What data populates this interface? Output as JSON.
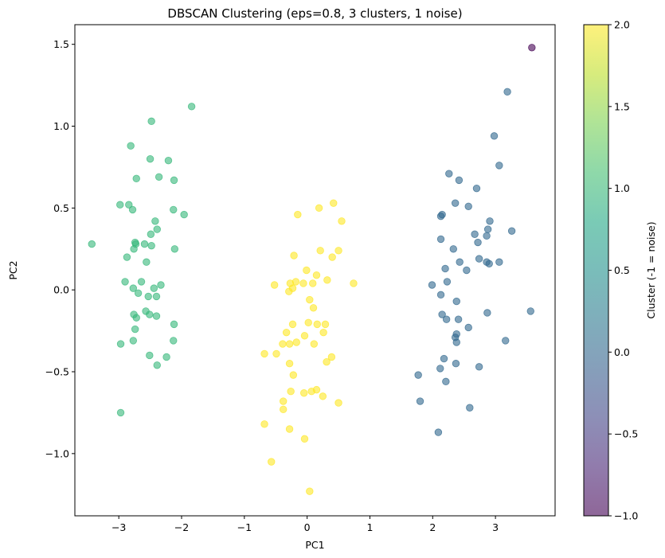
{
  "chart_data": {
    "type": "scatter",
    "title": "DBSCAN Clustering (eps=0.8, 3 clusters, 1 noise)",
    "xlabel": "PC1",
    "ylabel": "PC2",
    "xlim": [
      -3.7,
      3.95
    ],
    "ylim": [
      -1.38,
      1.62
    ],
    "x_ticks": [
      -3,
      -2,
      -1,
      0,
      1,
      2,
      3
    ],
    "x_tick_labels": [
      "−3",
      "−2",
      "−1",
      "0",
      "1",
      "2",
      "3"
    ],
    "y_ticks": [
      -1.0,
      -0.5,
      0.0,
      0.5,
      1.0,
      1.5
    ],
    "y_tick_labels": [
      "−1.0",
      "−0.5",
      "0.0",
      "0.5",
      "1.0",
      "1.5"
    ],
    "grid": false,
    "colorbar": {
      "label": "Cluster (-1 = noise)",
      "range": [
        -1.0,
        2.0
      ],
      "colormap": "viridis",
      "ticks": [
        -1.0,
        -0.5,
        0.0,
        0.5,
        1.0,
        1.5,
        2.0
      ],
      "tick_labels": [
        "−1.0",
        "−0.5",
        "0.0",
        "0.5",
        "1.0",
        "1.5",
        "2.0"
      ]
    },
    "cluster_colors": {
      "-1": "#440154",
      "0": "#31688e",
      "1": "#35b779",
      "2": "#fde725"
    },
    "point_alpha": 0.6,
    "series": [
      {
        "cluster": -1,
        "points": [
          [
            3.58,
            1.48
          ]
        ]
      },
      {
        "cluster": 0,
        "points": [
          [
            3.19,
            1.21
          ],
          [
            2.98,
            0.94
          ],
          [
            3.06,
            0.76
          ],
          [
            2.26,
            0.71
          ],
          [
            2.42,
            0.67
          ],
          [
            2.7,
            0.62
          ],
          [
            2.36,
            0.53
          ],
          [
            2.57,
            0.51
          ],
          [
            2.15,
            0.46
          ],
          [
            2.13,
            0.45
          ],
          [
            2.91,
            0.42
          ],
          [
            2.88,
            0.37
          ],
          [
            3.26,
            0.36
          ],
          [
            2.67,
            0.34
          ],
          [
            2.86,
            0.33
          ],
          [
            2.72,
            0.29
          ],
          [
            2.13,
            0.31
          ],
          [
            2.33,
            0.25
          ],
          [
            2.74,
            0.19
          ],
          [
            2.43,
            0.17
          ],
          [
            2.86,
            0.17
          ],
          [
            2.9,
            0.16
          ],
          [
            3.06,
            0.17
          ],
          [
            2.2,
            0.13
          ],
          [
            2.54,
            0.12
          ],
          [
            2.23,
            0.05
          ],
          [
            1.99,
            0.03
          ],
          [
            2.13,
            -0.03
          ],
          [
            3.56,
            -0.13
          ],
          [
            2.38,
            -0.07
          ],
          [
            2.15,
            -0.15
          ],
          [
            2.22,
            -0.18
          ],
          [
            2.41,
            -0.18
          ],
          [
            2.87,
            -0.14
          ],
          [
            2.57,
            -0.23
          ],
          [
            2.38,
            -0.27
          ],
          [
            2.36,
            -0.29
          ],
          [
            2.38,
            -0.32
          ],
          [
            3.16,
            -0.31
          ],
          [
            2.18,
            -0.42
          ],
          [
            2.37,
            -0.45
          ],
          [
            2.12,
            -0.48
          ],
          [
            2.74,
            -0.47
          ],
          [
            1.77,
            -0.52
          ],
          [
            2.21,
            -0.56
          ],
          [
            1.8,
            -0.68
          ],
          [
            2.59,
            -0.72
          ],
          [
            2.09,
            -0.87
          ]
        ]
      },
      {
        "cluster": 1,
        "points": [
          [
            -1.84,
            1.12
          ],
          [
            -2.48,
            1.03
          ],
          [
            -2.81,
            0.88
          ],
          [
            -2.5,
            0.8
          ],
          [
            -2.21,
            0.79
          ],
          [
            -2.72,
            0.68
          ],
          [
            -2.36,
            0.69
          ],
          [
            -2.12,
            0.67
          ],
          [
            -2.98,
            0.52
          ],
          [
            -2.84,
            0.52
          ],
          [
            -2.78,
            0.49
          ],
          [
            -2.13,
            0.49
          ],
          [
            -1.96,
            0.46
          ],
          [
            -2.42,
            0.42
          ],
          [
            -2.39,
            0.37
          ],
          [
            -2.49,
            0.34
          ],
          [
            -3.43,
            0.28
          ],
          [
            -2.74,
            0.29
          ],
          [
            -2.73,
            0.28
          ],
          [
            -2.59,
            0.28
          ],
          [
            -2.48,
            0.27
          ],
          [
            -2.76,
            0.25
          ],
          [
            -2.11,
            0.25
          ],
          [
            -2.87,
            0.2
          ],
          [
            -2.56,
            0.17
          ],
          [
            -2.9,
            0.05
          ],
          [
            -2.64,
            0.05
          ],
          [
            -2.33,
            0.03
          ],
          [
            -2.77,
            0.01
          ],
          [
            -2.44,
            0.01
          ],
          [
            -2.69,
            -0.02
          ],
          [
            -2.53,
            -0.04
          ],
          [
            -2.4,
            -0.04
          ],
          [
            -2.57,
            -0.13
          ],
          [
            -2.76,
            -0.15
          ],
          [
            -2.51,
            -0.15
          ],
          [
            -2.4,
            -0.16
          ],
          [
            -2.72,
            -0.17
          ],
          [
            -2.12,
            -0.21
          ],
          [
            -2.74,
            -0.24
          ],
          [
            -2.97,
            -0.33
          ],
          [
            -2.77,
            -0.31
          ],
          [
            -2.13,
            -0.31
          ],
          [
            -2.51,
            -0.4
          ],
          [
            -2.24,
            -0.41
          ],
          [
            -2.39,
            -0.46
          ],
          [
            -2.97,
            -0.75
          ]
        ]
      },
      {
        "cluster": 2,
        "points": [
          [
            0.42,
            0.53
          ],
          [
            0.19,
            0.5
          ],
          [
            -0.15,
            0.46
          ],
          [
            0.55,
            0.42
          ],
          [
            0.21,
            0.24
          ],
          [
            0.5,
            0.24
          ],
          [
            0.4,
            0.2
          ],
          [
            -0.21,
            0.21
          ],
          [
            -0.01,
            0.12
          ],
          [
            0.15,
            0.09
          ],
          [
            -0.18,
            0.05
          ],
          [
            0.32,
            0.06
          ],
          [
            -0.27,
            0.04
          ],
          [
            -0.06,
            0.04
          ],
          [
            0.09,
            0.04
          ],
          [
            0.74,
            0.04
          ],
          [
            -0.52,
            0.03
          ],
          [
            -0.23,
            0.01
          ],
          [
            -0.29,
            -0.01
          ],
          [
            0.04,
            -0.06
          ],
          [
            0.1,
            -0.11
          ],
          [
            -0.23,
            -0.21
          ],
          [
            0.02,
            -0.2
          ],
          [
            0.16,
            -0.21
          ],
          [
            0.29,
            -0.21
          ],
          [
            -0.33,
            -0.26
          ],
          [
            0.26,
            -0.26
          ],
          [
            -0.39,
            -0.33
          ],
          [
            -0.28,
            -0.33
          ],
          [
            -0.17,
            -0.32
          ],
          [
            0.11,
            -0.33
          ],
          [
            -0.04,
            -0.28
          ],
          [
            0.39,
            -0.41
          ],
          [
            0.31,
            -0.44
          ],
          [
            -0.28,
            -0.45
          ],
          [
            -0.68,
            -0.39
          ],
          [
            -0.49,
            -0.39
          ],
          [
            -0.22,
            -0.52
          ],
          [
            -0.26,
            -0.62
          ],
          [
            0.07,
            -0.62
          ],
          [
            0.15,
            -0.61
          ],
          [
            0.25,
            -0.65
          ],
          [
            -0.05,
            -0.63
          ],
          [
            0.5,
            -0.69
          ],
          [
            -0.38,
            -0.68
          ],
          [
            -0.38,
            -0.73
          ],
          [
            -0.28,
            -0.85
          ],
          [
            -0.04,
            -0.91
          ],
          [
            -0.68,
            -0.82
          ],
          [
            -0.57,
            -1.05
          ],
          [
            0.04,
            -1.23
          ]
        ]
      }
    ]
  }
}
